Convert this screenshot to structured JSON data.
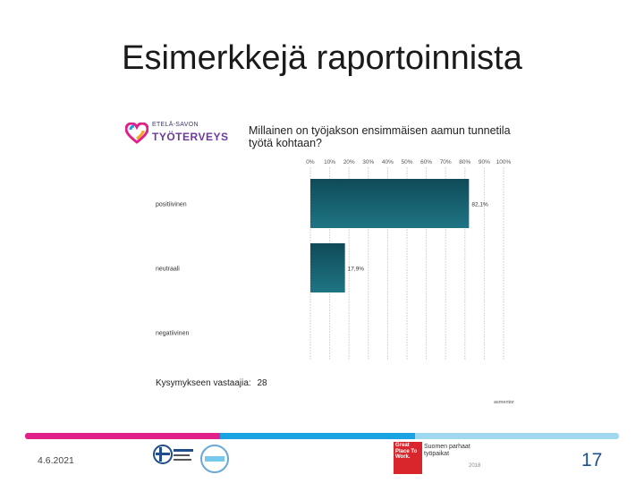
{
  "slide": {
    "title": "Esimerkkejä raportoinnista",
    "date": "4.6.2021",
    "page_number": "17"
  },
  "report": {
    "logo_top": "ETELÄ-SAVON",
    "logo_bottom": "TYÖTERVEYS",
    "respondents_label": "Kysymykseen vastaajia:",
    "respondents_count": "28",
    "footer_brand": "asmentor",
    "bar_color": "#17606f"
  },
  "footer_logos": {
    "gptw_text": "Great Place To Work.",
    "gptw_side": "Suomen parhaat työpaikat",
    "gptw_year": "2018"
  },
  "colors": {
    "stripe_pink": "#e0218a",
    "stripe_blue": "#1aa3e0",
    "stripe_pale": "#9fd8ef",
    "page_number": "#1f4e8c"
  },
  "chart_data": {
    "type": "bar",
    "orientation": "horizontal",
    "title": "Millainen on työjakson ensimmäisen aamun tunnetila työtä kohtaan?",
    "categories": [
      "positiivinen",
      "neutraali",
      "negatiivinen"
    ],
    "values": [
      82.1,
      17.9,
      0
    ],
    "value_labels": [
      "82,1%",
      "17,9%",
      ""
    ],
    "xlim": [
      0,
      100
    ],
    "ticks": [
      "0%",
      "10%",
      "20%",
      "30%",
      "40%",
      "50%",
      "60%",
      "70%",
      "80%",
      "90%",
      "100%"
    ],
    "grid": true
  }
}
